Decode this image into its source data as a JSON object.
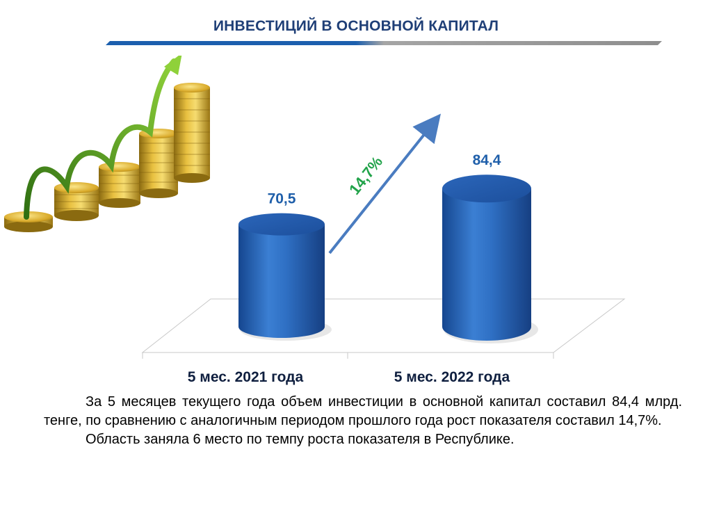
{
  "title": "ИНВЕСТИЦИЙ В ОСНОВНОЙ КАПИТАЛ",
  "colors": {
    "title": "#1f3f77",
    "bar": "#2a64b8",
    "value_label": "#1f5faa",
    "growth_label": "#22a34a",
    "arrow": "#4a7cc0",
    "rule_blue": "#1c5fae",
    "rule_gray": "#9a9a9a"
  },
  "illustration": {
    "icon": "coin-stacks-growth-arrow-icon"
  },
  "chart_data": {
    "type": "bar",
    "categories": [
      "5 мес. 2021 года",
      "5 мес. 2022 года"
    ],
    "values": [
      70.5,
      84.4
    ],
    "value_labels": [
      "70,5",
      "84,4"
    ],
    "growth_label": "14,7%"
  },
  "text": {
    "paragraph1": "За 5 месяцев текущего года объем инвестиции в основной капитал составил 84,4 млрд. тенге, по сравнению с аналогичным периодом прошлого года рост показателя составил 14,7%.",
    "paragraph2": "Область заняла 6 место по темпу роста показателя в Республике."
  }
}
